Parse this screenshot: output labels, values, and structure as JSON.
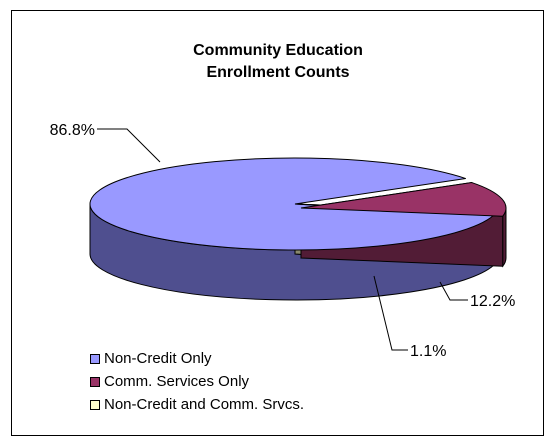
{
  "chart_data": {
    "type": "pie",
    "title_lines": [
      "Community Education",
      "Enrollment Counts"
    ],
    "slices": [
      {
        "label": "Non-Credit Only",
        "value": 86.8,
        "display": "86.8%",
        "color": "#9999FF",
        "side_color": "#4F4F8F"
      },
      {
        "label": "Comm. Services Only",
        "value": 12.2,
        "display": "12.2%",
        "color": "#993366",
        "side_color": "#521C36"
      },
      {
        "label": "Non-Credit and Comm. Srvcs.",
        "value": 1.1,
        "display": "1.1%",
        "color": "#FFFFCC",
        "side_color": "#8A8A6E"
      }
    ],
    "legend_position": "bottom-left",
    "three_d": true
  }
}
